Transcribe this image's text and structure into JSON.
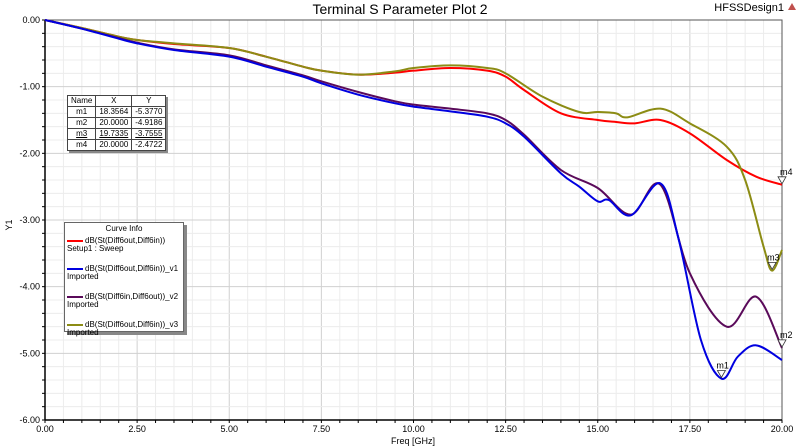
{
  "header": {
    "title": "Terminal S Parameter Plot 2",
    "design_name": "HFSSDesign1",
    "design_icon": "warning-triangle-icon"
  },
  "marker_table": {
    "columns": [
      "Name",
      "X",
      "Y"
    ],
    "rows": [
      {
        "name": "m1",
        "x": "18.3564",
        "y": "-5.3770"
      },
      {
        "name": "m2",
        "x": "20.0000",
        "y": "-4.9186"
      },
      {
        "name": "m3",
        "x": "19.7335",
        "y": "-3.7555"
      },
      {
        "name": "m4",
        "x": "20.0000",
        "y": "-2.4722"
      }
    ]
  },
  "legend": {
    "title": "Curve Info",
    "items": [
      {
        "label": "dB(St(Diff6out,Diff6in))",
        "sub": "Setup1 : Sweep",
        "color": "#ff0000"
      },
      {
        "label": "dB(St(Diff6out,Diff6in))_v1",
        "sub": "Imported",
        "color": "#0000e0"
      },
      {
        "label": "dB(St(Diff6in,Diff6out))_v2",
        "sub": "Imported",
        "color": "#5a0a5a"
      },
      {
        "label": "dB(St(Diff6out,Diff6in))_v3",
        "sub": "Imported",
        "color": "#8c8c14"
      }
    ]
  },
  "chart_data": {
    "type": "line",
    "title": "Terminal S Parameter Plot 2",
    "xlabel": "Freq [GHz]",
    "ylabel": "Y1",
    "xlim": [
      0,
      20
    ],
    "ylim": [
      -6,
      0
    ],
    "x_ticks": [
      "0.00",
      "2.50",
      "5.00",
      "7.50",
      "10.00",
      "12.50",
      "15.00",
      "17.50",
      "20.00"
    ],
    "y_ticks": [
      "0.00",
      "-1.00",
      "-2.00",
      "-3.00",
      "-4.00",
      "-5.00",
      "-6.00"
    ],
    "grid": true,
    "legend_position": "left-middle",
    "series": [
      {
        "name": "dB(St(Diff6out,Diff6in))",
        "source": "Setup1 : Sweep",
        "color": "#ff0000",
        "x": [
          0,
          1,
          2,
          2.5,
          3.5,
          5,
          6,
          7,
          7.5,
          8.5,
          9.5,
          10,
          11,
          12,
          12.5,
          13,
          14,
          15,
          15.5,
          16,
          16.7,
          17.5,
          18.5,
          19.3,
          20
        ],
        "y": [
          0,
          -0.12,
          -0.25,
          -0.3,
          -0.36,
          -0.42,
          -0.55,
          -0.7,
          -0.76,
          -0.82,
          -0.79,
          -0.76,
          -0.72,
          -0.76,
          -0.85,
          -1.05,
          -1.4,
          -1.5,
          -1.53,
          -1.55,
          -1.5,
          -1.7,
          -2.1,
          -2.35,
          -2.47
        ]
      },
      {
        "name": "dB(St(Diff6out,Diff6in))_v1",
        "source": "Imported",
        "color": "#0000e0",
        "x": [
          0,
          1,
          2,
          2.5,
          3.5,
          5,
          6,
          7,
          7.5,
          8.5,
          9.5,
          10,
          11,
          12,
          12.5,
          13,
          14,
          14.5,
          15,
          15.3,
          15.9,
          16.7,
          17.2,
          17.8,
          18.36,
          18.8,
          19.3,
          20
        ],
        "y": [
          0,
          -0.13,
          -0.28,
          -0.35,
          -0.45,
          -0.55,
          -0.7,
          -0.85,
          -0.95,
          -1.12,
          -1.25,
          -1.3,
          -1.37,
          -1.45,
          -1.55,
          -1.75,
          -2.3,
          -2.5,
          -2.72,
          -2.7,
          -2.93,
          -2.45,
          -3.3,
          -4.8,
          -5.38,
          -5.05,
          -4.88,
          -5.1
        ]
      },
      {
        "name": "dB(St(Diff6in,Diff6out))_v2",
        "source": "Imported",
        "color": "#5a0a5a",
        "x": [
          0,
          1,
          2,
          2.5,
          3.5,
          5,
          6,
          7,
          7.5,
          8.5,
          9.5,
          10,
          11,
          12,
          12.5,
          13,
          14,
          15,
          15.9,
          16.7,
          17.5,
          18.5,
          19.3,
          20
        ],
        "y": [
          0,
          -0.13,
          -0.27,
          -0.34,
          -0.44,
          -0.53,
          -0.68,
          -0.83,
          -0.92,
          -1.08,
          -1.22,
          -1.27,
          -1.33,
          -1.4,
          -1.5,
          -1.72,
          -2.25,
          -2.52,
          -2.92,
          -2.47,
          -3.8,
          -4.6,
          -4.15,
          -4.92
        ]
      },
      {
        "name": "dB(St(Diff6out,Diff6in))_v3",
        "source": "Imported",
        "color": "#8c8c14",
        "x": [
          0,
          1,
          2,
          2.5,
          3.5,
          5,
          6,
          7,
          7.5,
          8.5,
          9.5,
          10,
          11,
          12,
          12.5,
          13.5,
          14.5,
          15,
          15.5,
          15.8,
          16.7,
          17.5,
          18.5,
          19,
          19.5,
          19.73,
          20
        ],
        "y": [
          0,
          -0.12,
          -0.25,
          -0.3,
          -0.35,
          -0.42,
          -0.55,
          -0.7,
          -0.76,
          -0.82,
          -0.77,
          -0.72,
          -0.68,
          -0.72,
          -0.8,
          -1.15,
          -1.38,
          -1.38,
          -1.4,
          -1.46,
          -1.33,
          -1.55,
          -1.9,
          -2.4,
          -3.4,
          -3.76,
          -3.45
        ]
      }
    ],
    "markers": [
      {
        "name": "m1",
        "x": 18.3564,
        "y": -5.377,
        "series": 1
      },
      {
        "name": "m2",
        "x": 20.0,
        "y": -4.9186,
        "series": 2
      },
      {
        "name": "m3",
        "x": 19.7335,
        "y": -3.7555,
        "series": 3
      },
      {
        "name": "m4",
        "x": 20.0,
        "y": -2.4722,
        "series": 0
      }
    ]
  }
}
